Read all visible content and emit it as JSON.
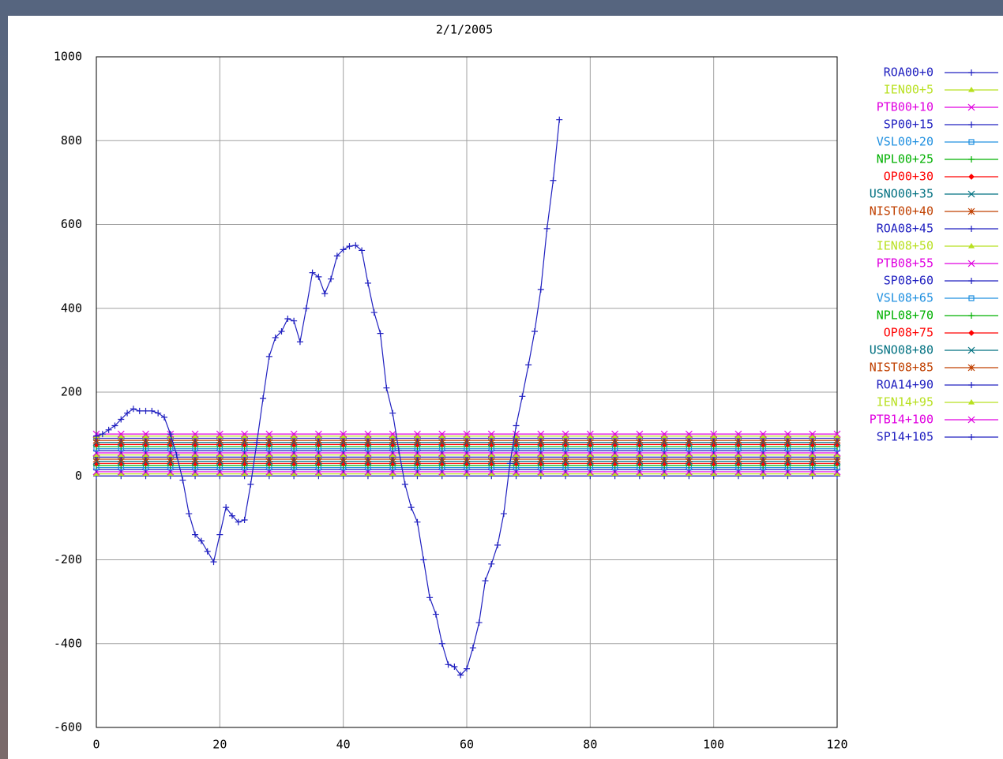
{
  "chart_data": {
    "type": "line",
    "title": "2/1/2005",
    "x": [
      0,
      4,
      8,
      12,
      16,
      20,
      24,
      28,
      32,
      36,
      40,
      44,
      48,
      52,
      56,
      60,
      64,
      68,
      72,
      76,
      80,
      84,
      88,
      92,
      96,
      100,
      104,
      108,
      112,
      116,
      120
    ],
    "xlim": [
      0,
      120
    ],
    "xticks": [
      0,
      20,
      40,
      60,
      80,
      100,
      120
    ],
    "ylim": [
      -600,
      1000
    ],
    "yticks": [
      -600,
      -400,
      -200,
      0,
      200,
      400,
      600,
      800,
      1000
    ],
    "grid": true,
    "series": [
      {
        "name": "ROA00+0",
        "color": "#2020c0",
        "marker": "plus",
        "values": [
          0,
          0,
          0,
          0,
          0,
          0,
          0,
          0,
          0,
          0,
          0,
          0,
          0,
          0,
          0,
          0,
          0,
          0,
          0,
          0,
          0,
          0,
          0,
          0,
          0,
          0,
          0,
          0,
          0,
          0,
          0
        ]
      },
      {
        "name": "IEN00+5",
        "color": "#b8e020",
        "marker": "triangle",
        "values": [
          5,
          5,
          5,
          5,
          5,
          5,
          5,
          5,
          5,
          5,
          5,
          5,
          5,
          5,
          5,
          5,
          5,
          5,
          5,
          5,
          5,
          5,
          5,
          5,
          5,
          5,
          5,
          5,
          5,
          5,
          5
        ]
      },
      {
        "name": "PTB00+10",
        "color": "#e000e0",
        "marker": "cross",
        "values": [
          10,
          10,
          10,
          10,
          10,
          10,
          10,
          10,
          10,
          10,
          10,
          10,
          10,
          10,
          10,
          10,
          10,
          10,
          10,
          10,
          10,
          10,
          10,
          10,
          10,
          10,
          10,
          10,
          10,
          10,
          10
        ]
      },
      {
        "name": "SP00+15",
        "color": "#2020c0",
        "marker": "plus",
        "values": [
          15,
          15,
          15,
          15,
          15,
          15,
          15,
          15,
          15,
          15,
          15,
          15,
          15,
          15,
          15,
          15,
          15,
          15,
          15,
          15,
          15,
          15,
          15,
          15,
          15,
          15,
          15,
          15,
          15,
          15,
          15
        ]
      },
      {
        "name": "VSL00+20",
        "color": "#2090e0",
        "marker": "square",
        "values": [
          20,
          20,
          20,
          20,
          20,
          20,
          20,
          20,
          20,
          20,
          20,
          20,
          20,
          20,
          20,
          20,
          20,
          20,
          20,
          20,
          20,
          20,
          20,
          20,
          20,
          20,
          20,
          20,
          20,
          20,
          20
        ]
      },
      {
        "name": "NPL00+25",
        "color": "#00b000",
        "marker": "plus",
        "values": [
          25,
          25,
          25,
          25,
          25,
          25,
          25,
          25,
          25,
          25,
          25,
          25,
          25,
          25,
          25,
          25,
          25,
          25,
          25,
          25,
          25,
          25,
          25,
          25,
          25,
          25,
          25,
          25,
          25,
          25,
          25
        ]
      },
      {
        "name": "OP00+30",
        "color": "#ff0000",
        "marker": "diamond",
        "values": [
          30,
          30,
          30,
          30,
          30,
          30,
          30,
          30,
          30,
          30,
          30,
          30,
          30,
          30,
          30,
          30,
          30,
          30,
          30,
          30,
          30,
          30,
          30,
          30,
          30,
          30,
          30,
          30,
          30,
          30,
          30
        ]
      },
      {
        "name": "USNO00+35",
        "color": "#007080",
        "marker": "cross",
        "values": [
          35,
          35,
          35,
          35,
          35,
          35,
          35,
          35,
          35,
          35,
          35,
          35,
          35,
          35,
          35,
          35,
          35,
          35,
          35,
          35,
          35,
          35,
          35,
          35,
          35,
          35,
          35,
          35,
          35,
          35,
          35
        ]
      },
      {
        "name": "NIST00+40",
        "color": "#c04000",
        "marker": "star",
        "values": [
          40,
          40,
          40,
          40,
          40,
          40,
          40,
          40,
          40,
          40,
          40,
          40,
          40,
          40,
          40,
          40,
          40,
          40,
          40,
          40,
          40,
          40,
          40,
          40,
          40,
          40,
          40,
          40,
          40,
          40,
          40
        ]
      },
      {
        "name": "ROA08+45",
        "color": "#2020c0",
        "marker": "plus",
        "values": [
          45,
          45,
          45,
          45,
          45,
          45,
          45,
          45,
          45,
          45,
          45,
          45,
          45,
          45,
          45,
          45,
          45,
          45,
          45,
          45,
          45,
          45,
          45,
          45,
          45,
          45,
          45,
          45,
          45,
          45,
          45
        ]
      },
      {
        "name": "IEN08+50",
        "color": "#b8e020",
        "marker": "triangle",
        "values": [
          50,
          50,
          50,
          50,
          50,
          50,
          50,
          50,
          50,
          50,
          50,
          50,
          50,
          50,
          50,
          50,
          50,
          50,
          50,
          50,
          50,
          50,
          50,
          50,
          50,
          50,
          50,
          50,
          50,
          50,
          50
        ]
      },
      {
        "name": "PTB08+55",
        "color": "#e000e0",
        "marker": "cross",
        "values": [
          55,
          55,
          55,
          55,
          55,
          55,
          55,
          55,
          55,
          55,
          55,
          55,
          55,
          55,
          55,
          55,
          55,
          55,
          55,
          55,
          55,
          55,
          55,
          55,
          55,
          55,
          55,
          55,
          55,
          55,
          55
        ]
      },
      {
        "name": "SP08+60",
        "color": "#2020c0",
        "marker": "plus",
        "values": [
          60,
          60,
          60,
          60,
          60,
          60,
          60,
          60,
          60,
          60,
          60,
          60,
          60,
          60,
          60,
          60,
          60,
          60,
          60,
          60,
          60,
          60,
          60,
          60,
          60,
          60,
          60,
          60,
          60,
          60,
          60
        ]
      },
      {
        "name": "VSL08+65",
        "color": "#2090e0",
        "marker": "square",
        "values": [
          65,
          65,
          65,
          65,
          65,
          65,
          65,
          65,
          65,
          65,
          65,
          65,
          65,
          65,
          65,
          65,
          65,
          65,
          65,
          65,
          65,
          65,
          65,
          65,
          65,
          65,
          65,
          65,
          65,
          65,
          65
        ]
      },
      {
        "name": "NPL08+70",
        "color": "#00b000",
        "marker": "plus",
        "values": [
          70,
          70,
          70,
          70,
          70,
          70,
          70,
          70,
          70,
          70,
          70,
          70,
          70,
          70,
          70,
          70,
          70,
          70,
          70,
          70,
          70,
          70,
          70,
          70,
          70,
          70,
          70,
          70,
          70,
          70,
          70
        ]
      },
      {
        "name": "OP08+75",
        "color": "#ff0000",
        "marker": "diamond",
        "values": [
          75,
          75,
          75,
          75,
          75,
          75,
          75,
          75,
          75,
          75,
          75,
          75,
          75,
          75,
          75,
          75,
          75,
          75,
          75,
          75,
          75,
          75,
          75,
          75,
          75,
          75,
          75,
          75,
          75,
          75,
          75
        ]
      },
      {
        "name": "USNO08+80",
        "color": "#007080",
        "marker": "cross",
        "values": [
          80,
          80,
          80,
          80,
          80,
          80,
          80,
          80,
          80,
          80,
          80,
          80,
          80,
          80,
          80,
          80,
          80,
          80,
          80,
          80,
          80,
          80,
          80,
          80,
          80,
          80,
          80,
          80,
          80,
          80,
          80
        ]
      },
      {
        "name": "NIST08+85",
        "color": "#c04000",
        "marker": "star",
        "values": [
          85,
          85,
          85,
          85,
          85,
          85,
          85,
          85,
          85,
          85,
          85,
          85,
          85,
          85,
          85,
          85,
          85,
          85,
          85,
          85,
          85,
          85,
          85,
          85,
          85,
          85,
          85,
          85,
          85,
          85,
          85
        ]
      },
      {
        "name": "ROA14+90",
        "color": "#2020c0",
        "marker": "plus",
        "values": [
          90,
          90,
          90,
          90,
          90,
          90,
          90,
          90,
          90,
          90,
          90,
          90,
          90,
          90,
          90,
          90,
          90,
          90,
          90,
          90,
          90,
          90,
          90,
          90,
          90,
          90,
          90,
          90,
          90,
          90,
          90
        ]
      },
      {
        "name": "IEN14+95",
        "color": "#b8e020",
        "marker": "triangle",
        "values": [
          95,
          95,
          95,
          95,
          95,
          95,
          95,
          95,
          95,
          95,
          95,
          95,
          95,
          95,
          95,
          95,
          95,
          95,
          95,
          95,
          95,
          95,
          95,
          95,
          95,
          95,
          95,
          95,
          95,
          95,
          95
        ]
      },
      {
        "name": "PTB14+100",
        "color": "#e000e0",
        "marker": "cross",
        "values": [
          100,
          100,
          100,
          100,
          100,
          100,
          100,
          100,
          100,
          100,
          100,
          100,
          100,
          100,
          100,
          100,
          100,
          100,
          100,
          100,
          100,
          100,
          100,
          100,
          100,
          100,
          100,
          100,
          100,
          100,
          100
        ]
      },
      {
        "name": "SP14+105",
        "color": "#2020c0",
        "marker": "plus",
        "x": [
          0,
          1,
          2,
          3,
          4,
          5,
          6,
          7,
          8,
          9,
          10,
          11,
          12,
          13,
          14,
          15,
          16,
          17,
          18,
          19,
          20,
          21,
          22,
          23,
          24,
          25,
          26,
          27,
          28,
          29,
          30,
          31,
          32,
          33,
          34,
          35,
          36,
          37,
          38,
          39,
          40,
          41,
          42,
          43,
          44,
          45,
          46,
          47,
          48,
          49,
          50,
          51,
          52,
          53,
          54,
          55,
          56,
          57,
          58,
          59,
          60,
          61,
          62,
          63,
          64,
          65,
          66,
          67,
          68,
          69,
          70,
          71,
          72,
          73,
          74,
          75
        ],
        "values": [
          95,
          100,
          110,
          120,
          135,
          150,
          160,
          155,
          155,
          155,
          150,
          140,
          100,
          50,
          -10,
          -90,
          -140,
          -155,
          -180,
          -205,
          -140,
          -75,
          -95,
          -110,
          -105,
          -20,
          80,
          185,
          285,
          330,
          345,
          375,
          370,
          320,
          400,
          485,
          475,
          435,
          470,
          525,
          540,
          548,
          550,
          538,
          460,
          390,
          340,
          210,
          150,
          60,
          -20,
          -75,
          -110,
          -200,
          -290,
          -330,
          -400,
          -450,
          -455,
          -475,
          -460,
          -410,
          -350,
          -250,
          -210,
          -165,
          -90,
          30,
          120,
          190,
          265,
          345,
          445,
          590,
          705,
          850
        ]
      }
    ]
  }
}
